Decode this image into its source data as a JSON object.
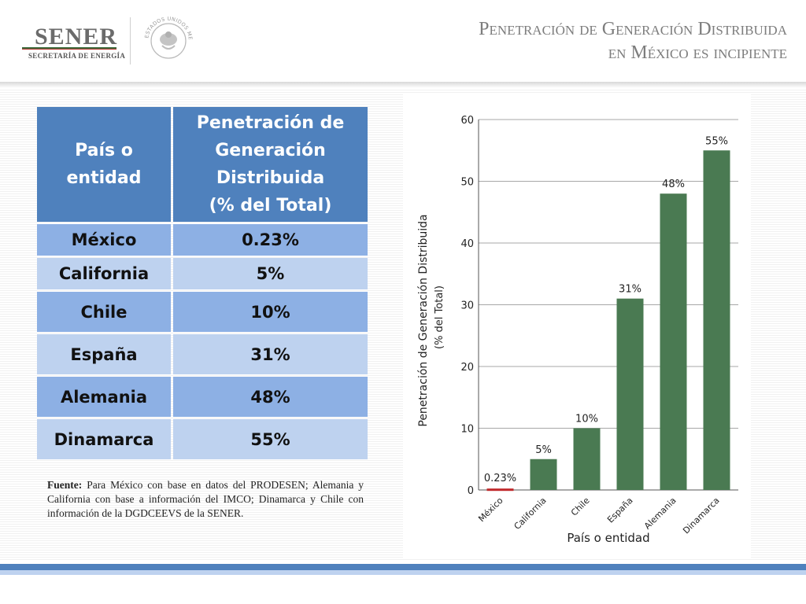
{
  "header": {
    "logo_text": "SENER",
    "logo_subtitle": "SECRETARÍA DE ENERGÍA",
    "title_line1": "Penetración de Generación Distribuida",
    "title_line2": "en México es incipiente",
    "seal_text": "ESTADOS UNIDOS MEXICANOS"
  },
  "table": {
    "header_col1": "País o entidad",
    "header_col2_line1": "Penetración de",
    "header_col2_line2": "Generación",
    "header_col2_line3": "Distribuida",
    "header_col2_line4": "(% del Total)",
    "rows": [
      {
        "entity": "México",
        "value": "0.23%"
      },
      {
        "entity": "California",
        "value": "5%"
      },
      {
        "entity": "Chile",
        "value": "10%"
      },
      {
        "entity": "España",
        "value": "31%"
      },
      {
        "entity": "Alemania",
        "value": "48%"
      },
      {
        "entity": "Dinamarca",
        "value": "55%"
      }
    ]
  },
  "source": {
    "label": "Fuente:",
    "text": "Para México con base en datos del PRODESEN; Alemania y California con base a información del IMCO; Dinamarca y Chile con información de la DGDCEEVS de la SENER."
  },
  "chart_data": {
    "type": "bar",
    "categories": [
      "México",
      "California",
      "Chile",
      "España",
      "Alemania",
      "Dinamarca"
    ],
    "values": [
      0.23,
      5,
      10,
      31,
      48,
      55
    ],
    "data_labels": [
      "0.23%",
      "5%",
      "10%",
      "31%",
      "48%",
      "55%"
    ],
    "bar_colors": [
      "#c0282b",
      "#4a7a52",
      "#4a7a52",
      "#4a7a52",
      "#4a7a52",
      "#4a7a52"
    ],
    "title": "",
    "xlabel": "País o entidad",
    "ylabel_line1": "Penetración de Generación Distribuida",
    "ylabel_line2": "(% del Total)",
    "ylim": [
      0,
      60
    ],
    "yticks": [
      0,
      10,
      20,
      30,
      40,
      50,
      60
    ],
    "grid": true
  },
  "colors": {
    "table_header": "#4f81bd",
    "row_dark": "#8db0e4",
    "row_light": "#bed2ef",
    "bar_green": "#4a7a52",
    "bar_red": "#c0282b"
  }
}
